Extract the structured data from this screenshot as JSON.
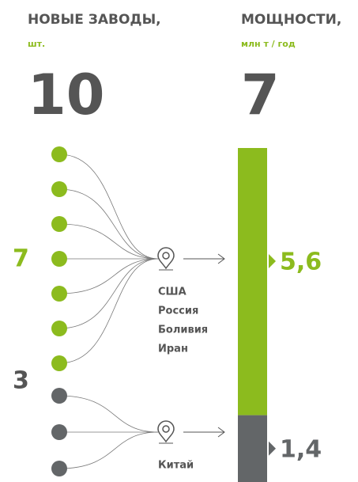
{
  "left": {
    "title": "НОВЫЕ ЗАВОДЫ,",
    "unit": "шт.",
    "total": 10,
    "groups": [
      {
        "count": 7,
        "color": "#8cbb1e",
        "countries": [
          "США",
          "Россия",
          "Боливия",
          "Иран"
        ]
      },
      {
        "count": 3,
        "color": "#636668",
        "countries": [
          "Китай"
        ]
      }
    ]
  },
  "right": {
    "title": "МОЩНОСТИ,",
    "unit": "млн т / год",
    "total": 7,
    "segments": [
      {
        "value": 5.6,
        "label": "5,6",
        "color": "#8cbb1e"
      },
      {
        "value": 1.4,
        "label": "1,4",
        "color": "#636668"
      }
    ]
  }
}
